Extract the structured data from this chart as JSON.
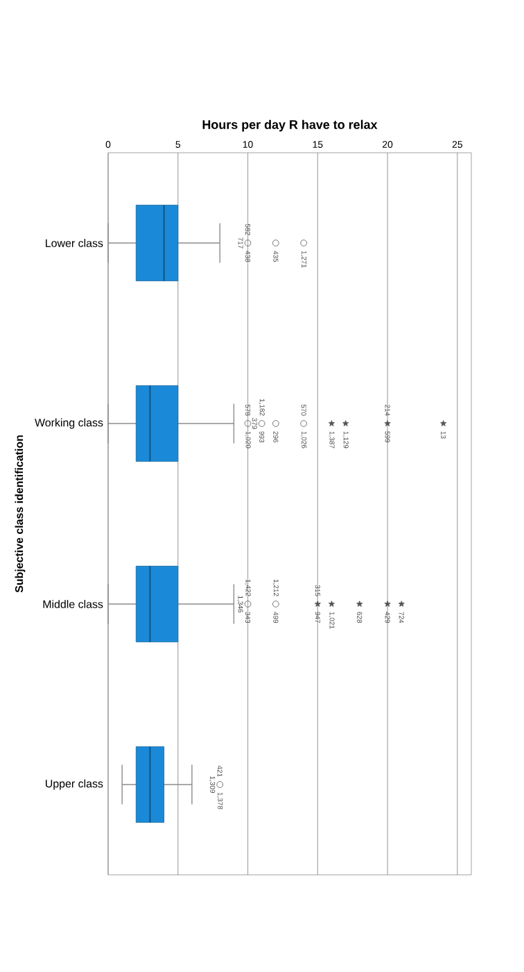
{
  "chart_data": {
    "type": "box",
    "orientation": "horizontal",
    "xlabel": "Hours per day R have to relax",
    "ylabel": "Subjective class identification",
    "categories": [
      "Lower class",
      "Working class",
      "Middle class",
      "Upper class"
    ],
    "xlim": [
      0,
      26
    ],
    "xticks": [
      0,
      5,
      10,
      15,
      20,
      25
    ],
    "grid": "x",
    "series": [
      {
        "type": "box",
        "color": "#1a8ad8",
        "boxes": [
          {
            "low": 0,
            "q1": 2,
            "median": 4,
            "q3": 5,
            "high": 8
          },
          {
            "low": 0,
            "q1": 2,
            "median": 3,
            "q3": 5,
            "high": 9
          },
          {
            "low": 0,
            "q1": 2,
            "median": 3,
            "q3": 5,
            "high": 9
          },
          {
            "low": 1,
            "q1": 2,
            "median": 3,
            "q3": 4,
            "high": 6
          }
        ]
      },
      {
        "type": "scatter",
        "marker": "circle",
        "color": "#555555",
        "x": [
          "Lower class",
          "Lower class",
          "Lower class",
          "Working class",
          "Working class",
          "Working class",
          "Working class",
          "Middle class",
          "Middle class",
          "Upper class"
        ],
        "values": [
          10,
          12,
          14,
          10,
          11,
          12,
          14,
          10,
          12,
          8
        ]
      },
      {
        "type": "scatter",
        "marker": "star",
        "color": "#555555",
        "x": [
          "Working class",
          "Working class",
          "Working class",
          "Working class",
          "Middle class",
          "Middle class",
          "Middle class",
          "Middle class",
          "Middle class"
        ],
        "values": [
          16,
          17,
          20,
          24,
          15,
          16,
          18,
          20,
          21
        ]
      }
    ],
    "annotations": [
      {
        "text": "438",
        "x": 10,
        "y": "Lower class"
      },
      {
        "text": "582",
        "x": 10,
        "y": "Lower class"
      },
      {
        "text": "717",
        "x": 10,
        "y": "Lower class"
      },
      {
        "text": "435",
        "x": 12,
        "y": "Lower class"
      },
      {
        "text": "1,271",
        "x": 14,
        "y": "Lower class"
      },
      {
        "text": "1,020",
        "x": 10,
        "y": "Working class"
      },
      {
        "text": "578",
        "x": 10,
        "y": "Working class"
      },
      {
        "text": "993",
        "x": 11,
        "y": "Working class"
      },
      {
        "text": "1,182",
        "x": 11,
        "y": "Working class"
      },
      {
        "text": "379",
        "x": 11,
        "y": "Working class"
      },
      {
        "text": "296",
        "x": 12,
        "y": "Working class"
      },
      {
        "text": "1,026",
        "x": 14,
        "y": "Working class"
      },
      {
        "text": "570",
        "x": 14,
        "y": "Working class"
      },
      {
        "text": "1,387",
        "x": 16,
        "y": "Working class"
      },
      {
        "text": "1,129",
        "x": 17,
        "y": "Working class"
      },
      {
        "text": "599",
        "x": 20,
        "y": "Working class"
      },
      {
        "text": "214",
        "x": 20,
        "y": "Working class"
      },
      {
        "text": "13",
        "x": 24,
        "y": "Working class"
      },
      {
        "text": "343",
        "x": 10,
        "y": "Middle class"
      },
      {
        "text": "1,422",
        "x": 10,
        "y": "Middle class"
      },
      {
        "text": "1,346",
        "x": 10,
        "y": "Middle class"
      },
      {
        "text": "499",
        "x": 12,
        "y": "Middle class"
      },
      {
        "text": "1,212",
        "x": 12,
        "y": "Middle class"
      },
      {
        "text": "947",
        "x": 15,
        "y": "Middle class"
      },
      {
        "text": "315",
        "x": 15,
        "y": "Middle class"
      },
      {
        "text": "1,021",
        "x": 16,
        "y": "Middle class"
      },
      {
        "text": "628",
        "x": 18,
        "y": "Middle class"
      },
      {
        "text": "429",
        "x": 20,
        "y": "Middle class"
      },
      {
        "text": "724",
        "x": 21,
        "y": "Middle class"
      },
      {
        "text": "1,378",
        "x": 8,
        "y": "Upper class"
      },
      {
        "text": "421",
        "x": 8,
        "y": "Upper class"
      },
      {
        "text": "1,309",
        "x": 8,
        "y": "Upper class"
      }
    ]
  }
}
